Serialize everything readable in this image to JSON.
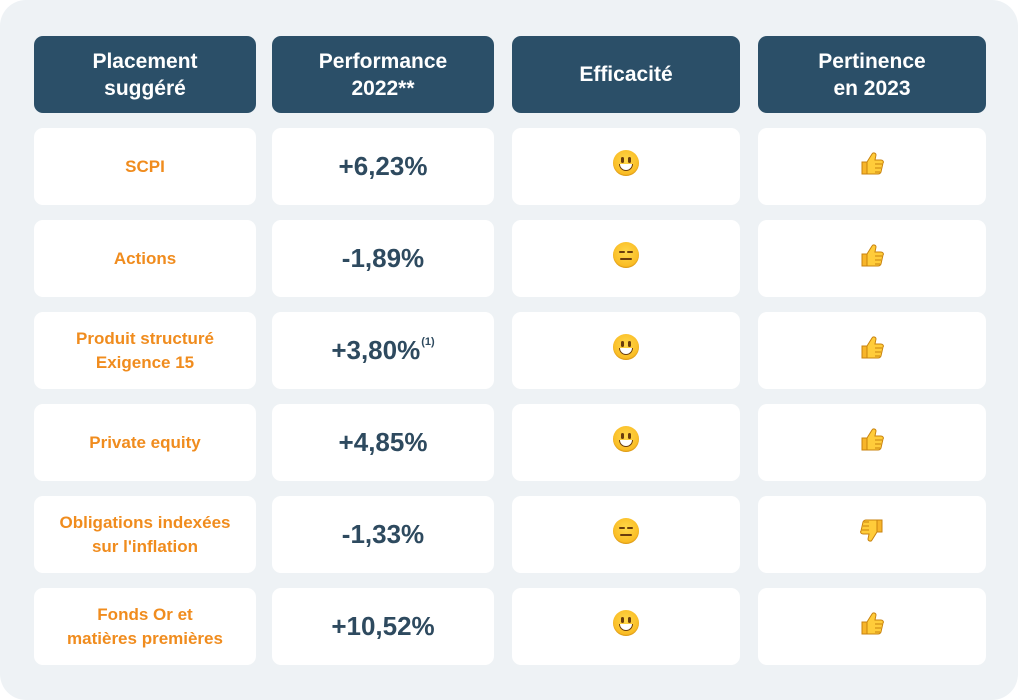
{
  "headers": {
    "placement": "Placement suggéré",
    "performance": "Performance 2022**",
    "efficacite": "Efficacité",
    "pertinence": "Pertinence en 2023"
  },
  "rows": [
    {
      "name": "SCPI",
      "performance": "+6,23%",
      "performance_note": "",
      "efficacite_icon": "grinning-face-icon",
      "pertinence_icon": "thumbs-up-icon"
    },
    {
      "name": "Actions",
      "performance": "-1,89%",
      "performance_note": "",
      "efficacite_icon": "expressionless-face-icon",
      "pertinence_icon": "thumbs-up-icon"
    },
    {
      "name": "Produit structuré Exigence 15",
      "performance": "+3,80%",
      "performance_note": "(1)",
      "efficacite_icon": "grinning-face-icon",
      "pertinence_icon": "thumbs-up-icon"
    },
    {
      "name": "Private equity",
      "performance": "+4,85%",
      "performance_note": "",
      "efficacite_icon": "grinning-face-icon",
      "pertinence_icon": "thumbs-up-icon"
    },
    {
      "name": "Obligations indexées sur l'inflation",
      "performance": "-1,33%",
      "performance_note": "",
      "efficacite_icon": "expressionless-face-icon",
      "pertinence_icon": "thumbs-down-icon"
    },
    {
      "name": "Fonds Or et matières premières",
      "performance": "+10,52%",
      "performance_note": "",
      "efficacite_icon": "grinning-face-icon",
      "pertinence_icon": "thumbs-up-icon"
    }
  ],
  "colors": {
    "header_bg": "#2b4f68",
    "name_text": "#f08c1e",
    "performance_text": "#2e4a5f",
    "panel_bg": "#eef2f5"
  }
}
